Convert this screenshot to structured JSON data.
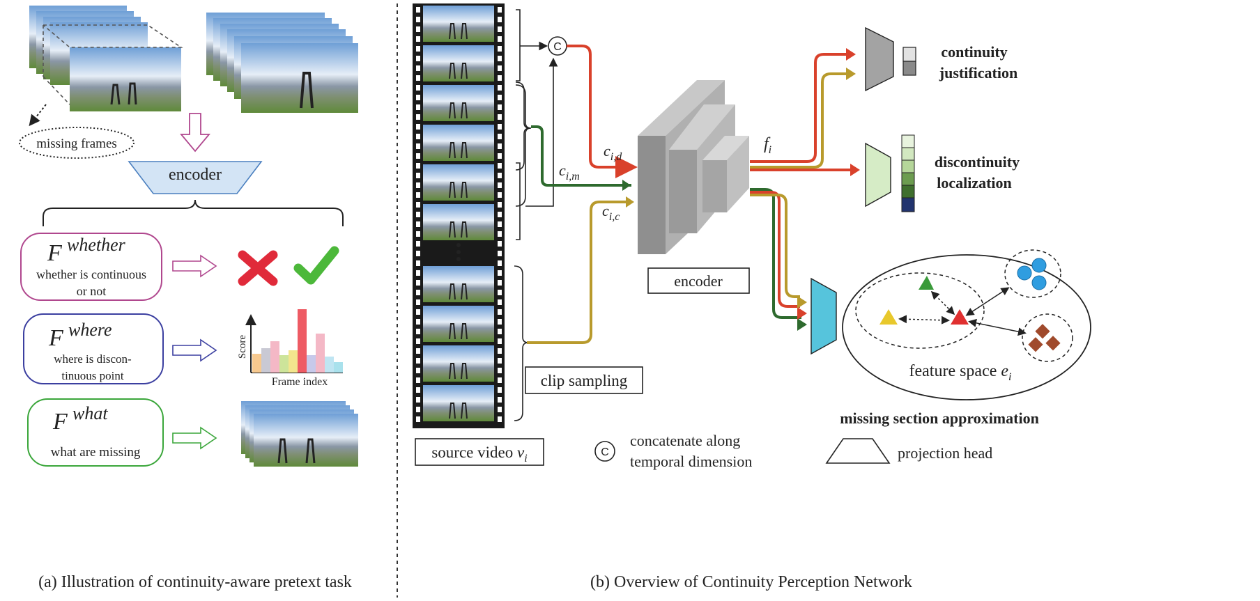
{
  "left_panel": {
    "missing_frames_label": "missing frames",
    "encoder_label": "encoder",
    "tasks": [
      {
        "symbol": "F",
        "superscript": "whether",
        "desc_line1": "whether is continuous",
        "desc_line2": "or not",
        "color": "#b0478e"
      },
      {
        "symbol": "F",
        "superscript": "where",
        "desc_line1": "where is discon-",
        "desc_line2": "tinuous point",
        "color": "#3b3fa0"
      },
      {
        "symbol": "F",
        "superscript": "what",
        "desc_line1": "what are missing",
        "desc_line2": "",
        "color": "#3aa63a"
      }
    ],
    "bar_chart": {
      "ylabel": "Score",
      "xlabel": "Frame index"
    },
    "caption": "(a) Illustration of continuity-aware pretext task"
  },
  "right_panel": {
    "concat_symbol": "C",
    "c_labels": {
      "d_base": "c",
      "d_sub": "i,d",
      "m_base": "c",
      "m_sub": "i,m",
      "c_base": "c",
      "c_sub": "i,c"
    },
    "f_label": {
      "base": "f",
      "sub": "i"
    },
    "encoder_label": "encoder",
    "clip_sampling_label": "clip sampling",
    "source_video_label": {
      "text": "source video ",
      "var": "v",
      "sub": "i"
    },
    "continuity_label": [
      "continuity",
      "justification"
    ],
    "discontinuity_label": [
      "discontinuity",
      "localization"
    ],
    "feature_space_label": {
      "text": "feature space ",
      "var": "e",
      "sub": "i"
    },
    "missing_section_label": "missing section approximation",
    "legend": {
      "concat_line1": "concatenate along",
      "concat_line2": "temporal dimension",
      "projection_head": "projection head"
    },
    "caption": "(b) Overview of Continuity Perception Network"
  },
  "colors": {
    "red": "#d9412b",
    "green": "#2e6a2e",
    "gold": "#b89a2c",
    "cyan": "#56c4dc",
    "lightgreen": "#d6ecc6",
    "gray": "#a3a3a3"
  }
}
